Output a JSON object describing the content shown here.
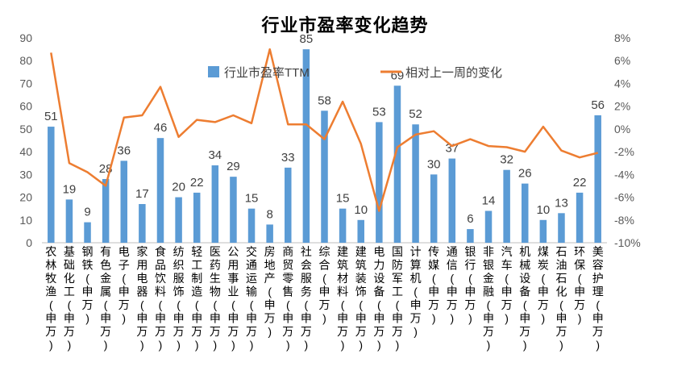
{
  "chart_data": {
    "type": "bar+line",
    "title": "行业市盈率变化趋势",
    "categories": [
      "农林牧渔(申万)",
      "基础化工(申万)",
      "钢铁(申万)",
      "有色金属(申万)",
      "电子(申万)",
      "家用电器(申万)",
      "食品饮料(申万)",
      "纺织服饰(申万)",
      "轻工制造(申万)",
      "医药生物(申万)",
      "公用事业(申万)",
      "交通运输(申万)",
      "房地产(申万)",
      "商贸零售(申万)",
      "社会服务(申万)",
      "综合(申万)",
      "建筑材料(申万)",
      "建筑装饰(申万)",
      "电力设备(申万)",
      "国防军工(申万)",
      "计算机(申万)",
      "传媒(申万)",
      "通信(申万)",
      "银行(申万)",
      "非银金融(申万)",
      "汽车(申万)",
      "机械设备(申万)",
      "煤炭(申万)",
      "石油石化(申万)",
      "环保(申万)",
      "美容护理(申万)"
    ],
    "series": [
      {
        "name": "行业市盈率TTM",
        "type": "bar",
        "axis": "left",
        "color": "#5B9BD5",
        "values": [
          51,
          19,
          9,
          28,
          36,
          17,
          46,
          20,
          22,
          34,
          29,
          15,
          8,
          33,
          85,
          58,
          15,
          10,
          53,
          69,
          52,
          30,
          37,
          6,
          14,
          32,
          26,
          10,
          13,
          22,
          56
        ]
      },
      {
        "name": "相对上一周的变化",
        "type": "line",
        "axis": "right",
        "color": "#ED7D31",
        "values": [
          6.7,
          -3.0,
          -3.8,
          -5.0,
          1.0,
          1.2,
          3.7,
          -0.7,
          0.8,
          0.6,
          1.2,
          0.5,
          7.0,
          0.4,
          0.4,
          -0.9,
          2.4,
          -1.3,
          -7.2,
          -1.6,
          -0.5,
          -0.2,
          -1.5,
          -0.9,
          -1.5,
          -1.6,
          -2.0,
          0.2,
          -1.9,
          -2.5,
          -2.1
        ]
      }
    ],
    "left_axis": {
      "min": 0,
      "max": 90,
      "step": 10,
      "tick_labels": [
        "0",
        "10",
        "20",
        "30",
        "40",
        "50",
        "60",
        "70",
        "80",
        "90"
      ]
    },
    "right_axis": {
      "min": -10,
      "max": 8,
      "step": 2,
      "tick_labels": [
        "-10%",
        "-8%",
        "-6%",
        "-4%",
        "-2%",
        "0%",
        "2%",
        "4%",
        "6%",
        "8%"
      ]
    },
    "legend_position": "top-center",
    "grid": false
  }
}
